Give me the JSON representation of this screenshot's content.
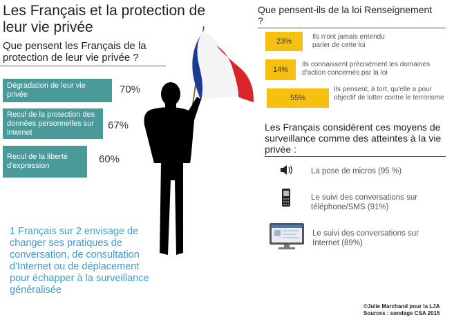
{
  "title": "Les Français et la protection de leur vie privée",
  "left_question": "Que pensent les Français de la protection de leur vie privée ?",
  "left_bars": [
    {
      "label": "Dégradation de leur vie privée",
      "pct_text": "70%",
      "value": 70
    },
    {
      "label": "Recul de la protection des données personnelles sur internet",
      "pct_text": "67%",
      "value": 67
    },
    {
      "label": "Recul de la liberté d'expression",
      "pct_text": "60%",
      "value": 60
    }
  ],
  "highlight_text": "1 Français sur 2 envisage de changer ses pratiques de conversation, de consultation d'Internet ou de déplacement pour échapper  à la surveillance généralisée",
  "right_question": "Que pensent-ils de la loi Renseignement ?",
  "law_items": [
    {
      "pct_text": "23%",
      "text": "Ils n'ont jamais entendu parler de cette loi"
    },
    {
      "pct_text": "14%",
      "text": "Ils connaissent précisément les domaines d'action concernés par la loi"
    },
    {
      "pct_text": "55%",
      "text": "Ils pensent, à tort, qu'elle a pour objectif de lutter contre le terrorisme"
    }
  ],
  "surveillance_question": "Les Français considèrent ces moyens de surveillance comme des atteintes à la vie privée :",
  "surveillance_items": [
    {
      "icon": "speaker-icon",
      "text": "La pose de micros (95 %)"
    },
    {
      "icon": "mobile-phone-icon",
      "text": "Le suivi des conversations sur téléphone/SMS (91%)"
    },
    {
      "icon": "monitor-icon",
      "text": "Le suivi des conversations sur Internet (89%)"
    }
  ],
  "credit_line1": "©Julie Marchand pour la LJA",
  "credit_line2": "Sources : sondage CSA 2015",
  "colors": {
    "teal": "#4a9a99",
    "yellow": "#f5c010",
    "blue_text": "#3c9bd2",
    "flag_blue": "#1b3d8f",
    "flag_red": "#d8262b"
  }
}
